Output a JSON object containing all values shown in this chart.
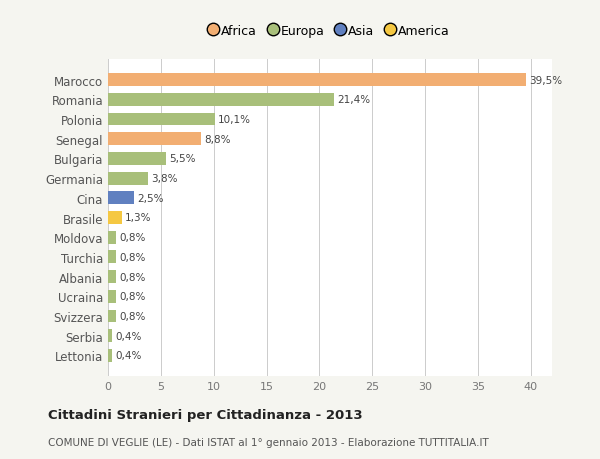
{
  "countries": [
    "Marocco",
    "Romania",
    "Polonia",
    "Senegal",
    "Bulgaria",
    "Germania",
    "Cina",
    "Brasile",
    "Moldova",
    "Turchia",
    "Albania",
    "Ucraina",
    "Svizzera",
    "Serbia",
    "Lettonia"
  ],
  "values": [
    39.5,
    21.4,
    10.1,
    8.8,
    5.5,
    3.8,
    2.5,
    1.3,
    0.8,
    0.8,
    0.8,
    0.8,
    0.8,
    0.4,
    0.4
  ],
  "labels": [
    "39,5%",
    "21,4%",
    "10,1%",
    "8,8%",
    "5,5%",
    "3,8%",
    "2,5%",
    "1,3%",
    "0,8%",
    "0,8%",
    "0,8%",
    "0,8%",
    "0,8%",
    "0,4%",
    "0,4%"
  ],
  "bar_colors": [
    "#f2ae72",
    "#a8bf7a",
    "#a8bf7a",
    "#f2ae72",
    "#a8bf7a",
    "#a8bf7a",
    "#6080c0",
    "#f5c842",
    "#a8bf7a",
    "#a8bf7a",
    "#a8bf7a",
    "#a8bf7a",
    "#a8bf7a",
    "#a8bf7a",
    "#a8bf7a"
  ],
  "legend_labels": [
    "Africa",
    "Europa",
    "Asia",
    "America"
  ],
  "legend_colors": [
    "#f2ae72",
    "#a8bf7a",
    "#6080c0",
    "#f5c842"
  ],
  "xlim": [
    0,
    42
  ],
  "xticks": [
    0,
    5,
    10,
    15,
    20,
    25,
    30,
    35,
    40
  ],
  "title": "Cittadini Stranieri per Cittadinanza - 2013",
  "subtitle": "COMUNE DI VEGLIE (LE) - Dati ISTAT al 1° gennaio 2013 - Elaborazione TUTTITALIA.IT",
  "bg_color": "#f5f5f0",
  "plot_bg_color": "#ffffff"
}
